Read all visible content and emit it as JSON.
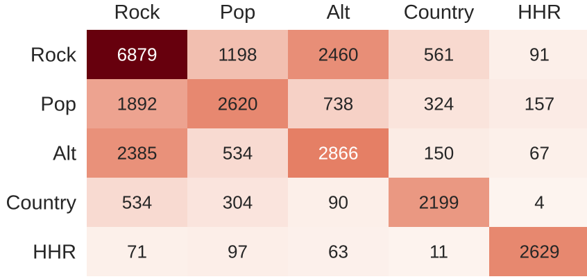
{
  "chart_data": {
    "type": "heatmap",
    "title": "",
    "xlabel": "",
    "ylabel": "",
    "x_categories": [
      "Rock",
      "Pop",
      "Alt",
      "Country",
      "HHR"
    ],
    "y_categories": [
      "Rock",
      "Pop",
      "Alt",
      "Country",
      "HHR"
    ],
    "values": [
      [
        6879,
        1198,
        2460,
        561,
        91
      ],
      [
        1892,
        2620,
        738,
        324,
        157
      ],
      [
        2385,
        534,
        2866,
        150,
        67
      ],
      [
        534,
        304,
        90,
        2199,
        4
      ],
      [
        71,
        97,
        63,
        11,
        2629
      ]
    ],
    "color_scale": {
      "min": 0,
      "max": 6879,
      "low_color": "#fdf4ef",
      "mid_color": "#e57e64",
      "high_color": "#67000d"
    },
    "x_axis_position": "top",
    "grid": false,
    "legend": "none"
  }
}
